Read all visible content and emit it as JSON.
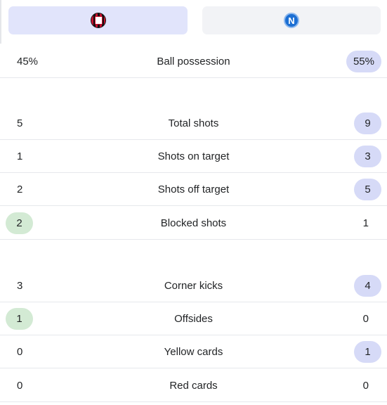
{
  "teams": {
    "home": {
      "logo_icon": "ac-milan-crest-icon",
      "color": "#c8102e"
    },
    "away": {
      "logo_icon": "napoli-crest-icon",
      "logo_letter": "N",
      "color": "#1d6fd3"
    }
  },
  "highlight_colors": {
    "home": "#d3ead4",
    "away": "#d6daf7",
    "home_tab": "#e1e4fb",
    "away_tab": "#f2f3f6"
  },
  "stats": [
    {
      "label": "Ball possession",
      "home": "45%",
      "away": "55%",
      "leader": "away"
    },
    {
      "label": "Total shots",
      "home": "5",
      "away": "9",
      "leader": "away"
    },
    {
      "label": "Shots on target",
      "home": "1",
      "away": "3",
      "leader": "away"
    },
    {
      "label": "Shots off target",
      "home": "2",
      "away": "5",
      "leader": "away"
    },
    {
      "label": "Blocked shots",
      "home": "2",
      "away": "1",
      "leader": "home"
    },
    {
      "label": "Corner kicks",
      "home": "3",
      "away": "4",
      "leader": "away"
    },
    {
      "label": "Offsides",
      "home": "1",
      "away": "0",
      "leader": "home"
    },
    {
      "label": "Yellow cards",
      "home": "0",
      "away": "1",
      "leader": "away"
    },
    {
      "label": "Red cards",
      "home": "0",
      "away": "0",
      "leader": "none"
    }
  ]
}
